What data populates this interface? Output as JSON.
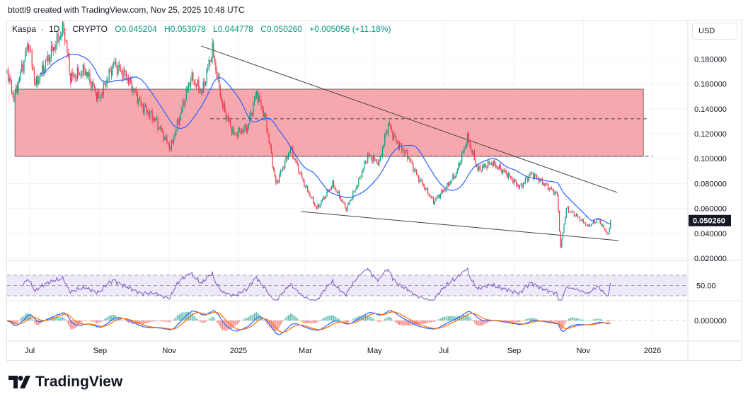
{
  "credit": "btotti9 created with TradingView.com, Nov 25, 2025 10:48 UTC",
  "legend": {
    "symbol": "Kaspa",
    "interval": "1D",
    "exchange": "CRYPTO",
    "open": "O0.045204",
    "high": "H0.053078",
    "low": "L0.044778",
    "close": "C0.050260",
    "change": "+0.005056 (+11.18%)"
  },
  "currency_button": "USD",
  "brand": "TradingView",
  "colors": {
    "up": "#089981",
    "down": "#f23645",
    "ma": "#2962ff",
    "rsi": "#7e57c2",
    "macd": "#2962ff",
    "signal": "#ff6d00",
    "zone": "#f7a8ae",
    "last_price_bg": "#131722"
  },
  "chart_data": {
    "type": "candlestick",
    "title": "Kaspa · 1D · CRYPTO",
    "ylim": [
      0.02,
      0.2
    ],
    "y_ticks": [
      "0.180000",
      "0.160000",
      "0.140000",
      "0.120000",
      "0.100000",
      "0.080000",
      "0.060000",
      "0.040000",
      "0.020000"
    ],
    "last_price": "0.050260",
    "x_ticks": [
      {
        "date": "2024-07-01",
        "label": "Jul"
      },
      {
        "date": "2024-09-01",
        "label": "Sep"
      },
      {
        "date": "2024-11-01",
        "label": "Nov"
      },
      {
        "date": "2025-01-01",
        "label": "2025"
      },
      {
        "date": "2025-03-01",
        "label": "Mar"
      },
      {
        "date": "2025-05-01",
        "label": "May"
      },
      {
        "date": "2025-07-01",
        "label": "Jul"
      },
      {
        "date": "2025-09-01",
        "label": "Sep"
      },
      {
        "date": "2025-11-01",
        "label": "Nov"
      },
      {
        "date": "2026-01-01",
        "label": "2026"
      }
    ],
    "approx_closes": [
      [
        "2024-06-11",
        0.1706
      ],
      [
        "2024-06-17",
        0.1477
      ],
      [
        "2024-06-30",
        0.1933
      ],
      [
        "2024-07-06",
        0.1592
      ],
      [
        "2024-07-18",
        0.1819
      ],
      [
        "2024-07-31",
        0.2047
      ],
      [
        "2024-08-06",
        0.1649
      ],
      [
        "2024-08-19",
        0.1706
      ],
      [
        "2024-08-31",
        0.1477
      ],
      [
        "2024-09-13",
        0.1763
      ],
      [
        "2024-09-25",
        0.1649
      ],
      [
        "2024-10-08",
        0.1422
      ],
      [
        "2024-10-20",
        0.1308
      ],
      [
        "2024-11-02",
        0.108
      ],
      [
        "2024-11-11",
        0.1365
      ],
      [
        "2024-11-20",
        0.1649
      ],
      [
        "2024-11-30",
        0.1535
      ],
      [
        "2024-12-09",
        0.1876
      ],
      [
        "2024-12-18",
        0.1422
      ],
      [
        "2024-12-28",
        0.1194
      ],
      [
        "2025-01-09",
        0.1251
      ],
      [
        "2025-01-17",
        0.1535
      ],
      [
        "2025-01-25",
        0.1308
      ],
      [
        "2025-02-03",
        0.0795
      ],
      [
        "2025-02-16",
        0.108
      ],
      [
        "2025-02-28",
        0.0795
      ],
      [
        "2025-03-11",
        0.0597
      ],
      [
        "2025-03-25",
        0.0795
      ],
      [
        "2025-04-06",
        0.0597
      ],
      [
        "2025-04-16",
        0.0795
      ],
      [
        "2025-04-25",
        0.1024
      ],
      [
        "2025-05-05",
        0.0967
      ],
      [
        "2025-05-13",
        0.128
      ],
      [
        "2025-05-20",
        0.1138
      ],
      [
        "2025-05-30",
        0.1024
      ],
      [
        "2025-06-08",
        0.0853
      ],
      [
        "2025-06-22",
        0.0655
      ],
      [
        "2025-07-03",
        0.0768
      ],
      [
        "2025-07-12",
        0.0882
      ],
      [
        "2025-07-22",
        0.1166
      ],
      [
        "2025-07-31",
        0.091
      ],
      [
        "2025-08-12",
        0.0967
      ],
      [
        "2025-08-25",
        0.0882
      ],
      [
        "2025-09-06",
        0.0768
      ],
      [
        "2025-09-16",
        0.0882
      ],
      [
        "2025-09-28",
        0.0795
      ],
      [
        "2025-10-09",
        0.0711
      ],
      [
        "2025-10-12",
        0.0285
      ],
      [
        "2025-10-17",
        0.0598
      ],
      [
        "2025-10-26",
        0.0541
      ],
      [
        "2025-11-05",
        0.0456
      ],
      [
        "2025-11-14",
        0.0512
      ],
      [
        "2025-11-23",
        0.0385
      ],
      [
        "2025-11-25",
        0.05026
      ]
    ],
    "annotations": {
      "zone": {
        "from": "2024-06-18",
        "to": "2025-12-24",
        "low": 0.1018,
        "high": 0.1558
      },
      "dashed_lines": [
        {
          "from": "2024-11-05",
          "to": "2026-01-01",
          "value": 0.1018
        },
        {
          "from": "2024-12-07",
          "to": "2025-12-28",
          "value": 0.132
        }
      ],
      "trendlines": [
        {
          "start": [
            "2024-11-29",
            0.1905
          ],
          "end": [
            "2025-12-01",
            0.0728
          ]
        },
        {
          "start": [
            "2025-02-25",
            0.0575
          ],
          "end": [
            "2025-12-02",
            0.0342
          ]
        }
      ]
    },
    "indicators": {
      "moving_average": {
        "period": 30
      },
      "rsi": {
        "period": 14,
        "bands": [
          70,
          30
        ],
        "tick": "50.00"
      },
      "macd": {
        "fast": 12,
        "slow": 26,
        "signal": 9,
        "tick": "0.000000"
      }
    }
  }
}
